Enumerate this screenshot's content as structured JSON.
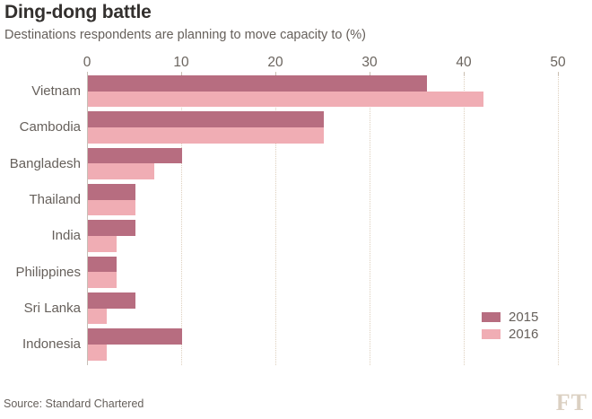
{
  "title": "Ding-dong battle",
  "subtitle": "Destinations respondents are planning to move capacity to (%)",
  "source": "Source: Standard Chartered",
  "ft_logo": "FT",
  "colors": {
    "series_2015": "#b76d80",
    "series_2016": "#f0adb4",
    "title_text": "#33302e",
    "body_text": "#66605b",
    "gridline": "#ddcfbd",
    "axis_line": "#c6bfb7",
    "ft_logo": "#dbd0c2",
    "background": "#ffffff"
  },
  "chart_data": {
    "type": "bar",
    "orientation": "horizontal",
    "title": "Ding-dong battle",
    "subtitle": "Destinations respondents are planning to move capacity to (%)",
    "categories": [
      "Vietnam",
      "Cambodia",
      "Bangladesh",
      "Thailand",
      "India",
      "Philippines",
      "Sri Lanka",
      "Indonesia"
    ],
    "series": [
      {
        "name": "2015",
        "color": "#b76d80",
        "values": [
          36,
          25,
          10,
          5,
          5,
          3,
          5,
          10
        ]
      },
      {
        "name": "2016",
        "color": "#f0adb4",
        "values": [
          42,
          25,
          7,
          5,
          3,
          3,
          2,
          2
        ]
      }
    ],
    "xlabel": "",
    "ylabel": "",
    "xlim": [
      0,
      50
    ],
    "xticks": [
      0,
      10,
      20,
      30,
      40,
      50
    ],
    "grid": "dotted-vertical",
    "legend_position": "bottom-right"
  }
}
